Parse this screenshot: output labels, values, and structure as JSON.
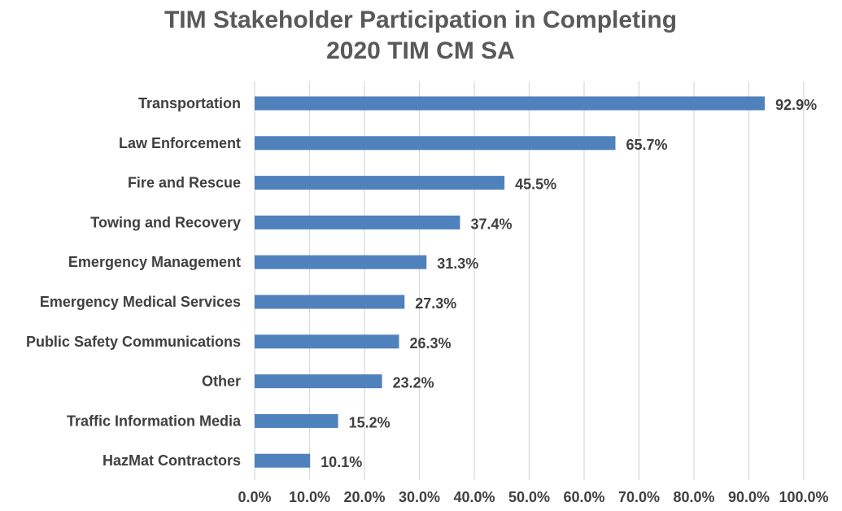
{
  "chart_data": {
    "type": "bar",
    "orientation": "horizontal",
    "title": "TIM Stakeholder Participation in Completing",
    "subtitle": "2020 TIM CM SA",
    "categories": [
      "Transportation",
      "Law Enforcement",
      "Fire and Rescue",
      "Towing and Recovery",
      "Emergency Management",
      "Emergency Medical Services",
      "Public Safety Communications",
      "Other",
      "Traffic Information Media",
      "HazMat Contractors"
    ],
    "values": [
      92.9,
      65.7,
      45.5,
      37.4,
      31.3,
      27.3,
      26.3,
      23.2,
      15.2,
      10.1
    ],
    "value_labels": [
      "92.9%",
      "65.7%",
      "45.5%",
      "37.4%",
      "31.3%",
      "27.3%",
      "26.3%",
      "23.2%",
      "15.2%",
      "10.1%"
    ],
    "xlabel": "",
    "ylabel": "",
    "xlim": [
      0,
      100
    ],
    "x_ticks": [
      0,
      10,
      20,
      30,
      40,
      50,
      60,
      70,
      80,
      90,
      100
    ],
    "x_tick_labels": [
      "0.0%",
      "10.0%",
      "20.0%",
      "30.0%",
      "40.0%",
      "50.0%",
      "60.0%",
      "70.0%",
      "80.0%",
      "90.0%",
      "100.0%"
    ],
    "grid": "vertical",
    "legend": "none",
    "bar_color": "#4f81bd"
  }
}
